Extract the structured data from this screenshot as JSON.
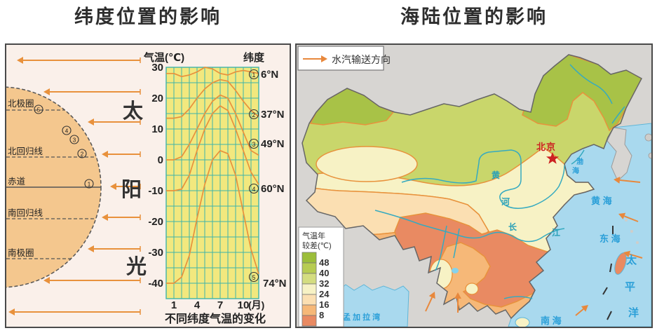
{
  "left_panel": {
    "title": "纬度位置的影响",
    "sun": {
      "chars": [
        "太",
        "阳",
        "光"
      ]
    },
    "globe": {
      "arctic_circle": "北极圈",
      "tropic_cancer": "北回归线",
      "equator": "赤道",
      "tropic_capricorn": "南回归线",
      "antarctic_circle": "南极圈",
      "circled": [
        "⑤",
        "④",
        "③",
        "②",
        "①"
      ],
      "circled_plain": [
        "5",
        "4",
        "3",
        "2",
        "1"
      ]
    },
    "chart": {
      "y_axis_title": "气温(℃)",
      "lat_column_title": "纬度",
      "y_ticks": [
        "30",
        "20",
        "10",
        "0",
        "-10",
        "-20",
        "-30",
        "-40"
      ],
      "x_ticks": [
        "1",
        "4",
        "7",
        "10"
      ],
      "x_unit": "(月)",
      "caption": "不同纬度气温的变化",
      "lat_labels": [
        {
          "num": "①",
          "n": "1",
          "lat": "6°N"
        },
        {
          "num": "②",
          "n": "2",
          "lat": "37°N"
        },
        {
          "num": "③",
          "n": "3",
          "lat": "49°N"
        },
        {
          "num": "④",
          "n": "4",
          "lat": "60°N"
        },
        {
          "num": "⑤",
          "n": "5",
          "lat": "74°N"
        }
      ]
    }
  },
  "right_panel": {
    "title": "海陆位置的影响",
    "vapor_legend": {
      "label": "水汽输送方向"
    },
    "temp_legend": {
      "title_line1": "气温年",
      "title_line2": "较差(℃)",
      "values": [
        "48",
        "40",
        "32",
        "24",
        "16",
        "8"
      ],
      "swatch_colors": [
        "#9cbe3a",
        "#b7cc52",
        "#d4dd80",
        "#f7f2c5",
        "#fbdfb2",
        "#f6b878",
        "#e98a62"
      ]
    },
    "map_labels": {
      "beijing": "北京",
      "bohai_chars": [
        "渤",
        "海"
      ],
      "yellow_sea": "黄 海",
      "east_sea": "东 海",
      "south_sea": "南   海",
      "pacific_chars": [
        "太",
        "平",
        "洋"
      ],
      "bengal_bay": "孟 加 拉 湾",
      "yellow_river_chars": [
        "黄",
        "河"
      ],
      "yangtze_chars": [
        "长",
        "江"
      ]
    },
    "colors": {
      "sea": "#a9d9ee",
      "arrow": "#e8883c",
      "contour": "#e8923c",
      "river": "#35aac0",
      "beijing_red": "#cc2222",
      "land_outside": "#d7d5d2"
    }
  },
  "chart_data": {
    "type": "line",
    "title": "不同纬度气温的变化",
    "xlabel": "月",
    "ylabel": "气温(℃)",
    "x": [
      1,
      2,
      3,
      4,
      5,
      6,
      7,
      8,
      9,
      10,
      11,
      12
    ],
    "ylim": [
      -45,
      30
    ],
    "grid": true,
    "series": [
      {
        "name": "6°N",
        "values": [
          28,
          27,
          27.5,
          28.5,
          30,
          29.5,
          28,
          27.5,
          28.5,
          29,
          28.5,
          28
        ]
      },
      {
        "name": "37°N",
        "values": [
          13.5,
          14,
          16.5,
          20,
          23,
          25,
          26,
          25.5,
          22.5,
          19,
          16,
          14
        ]
      },
      {
        "name": "49°N",
        "values": [
          0,
          1,
          5,
          10,
          15,
          19,
          21,
          20,
          15,
          9,
          3,
          1.5
        ]
      },
      {
        "name": "60°N",
        "values": [
          -10,
          -9.5,
          -5,
          3,
          10,
          15,
          17.5,
          16,
          10,
          3,
          -4,
          -8
        ]
      },
      {
        "name": "74°N",
        "values": [
          -40,
          -38,
          -31,
          -19,
          -8,
          0,
          3,
          2,
          -5,
          -17,
          -29,
          -37
        ]
      }
    ]
  }
}
